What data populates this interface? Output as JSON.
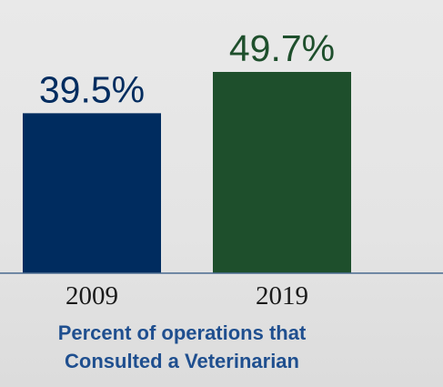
{
  "chart_data": {
    "type": "bar",
    "categories": [
      "2009",
      "2019"
    ],
    "values": [
      39.5,
      49.7
    ],
    "value_labels": [
      "39.5%",
      "49.7%"
    ],
    "colors": [
      "#002c5f",
      "#1e4f2c"
    ],
    "title_lines": [
      "Percent of operations that",
      "Consulted a Veterinarian"
    ],
    "xlabel": "",
    "ylabel": "",
    "ylim": [
      0,
      49.7
    ],
    "grid": false,
    "legend": "none"
  }
}
